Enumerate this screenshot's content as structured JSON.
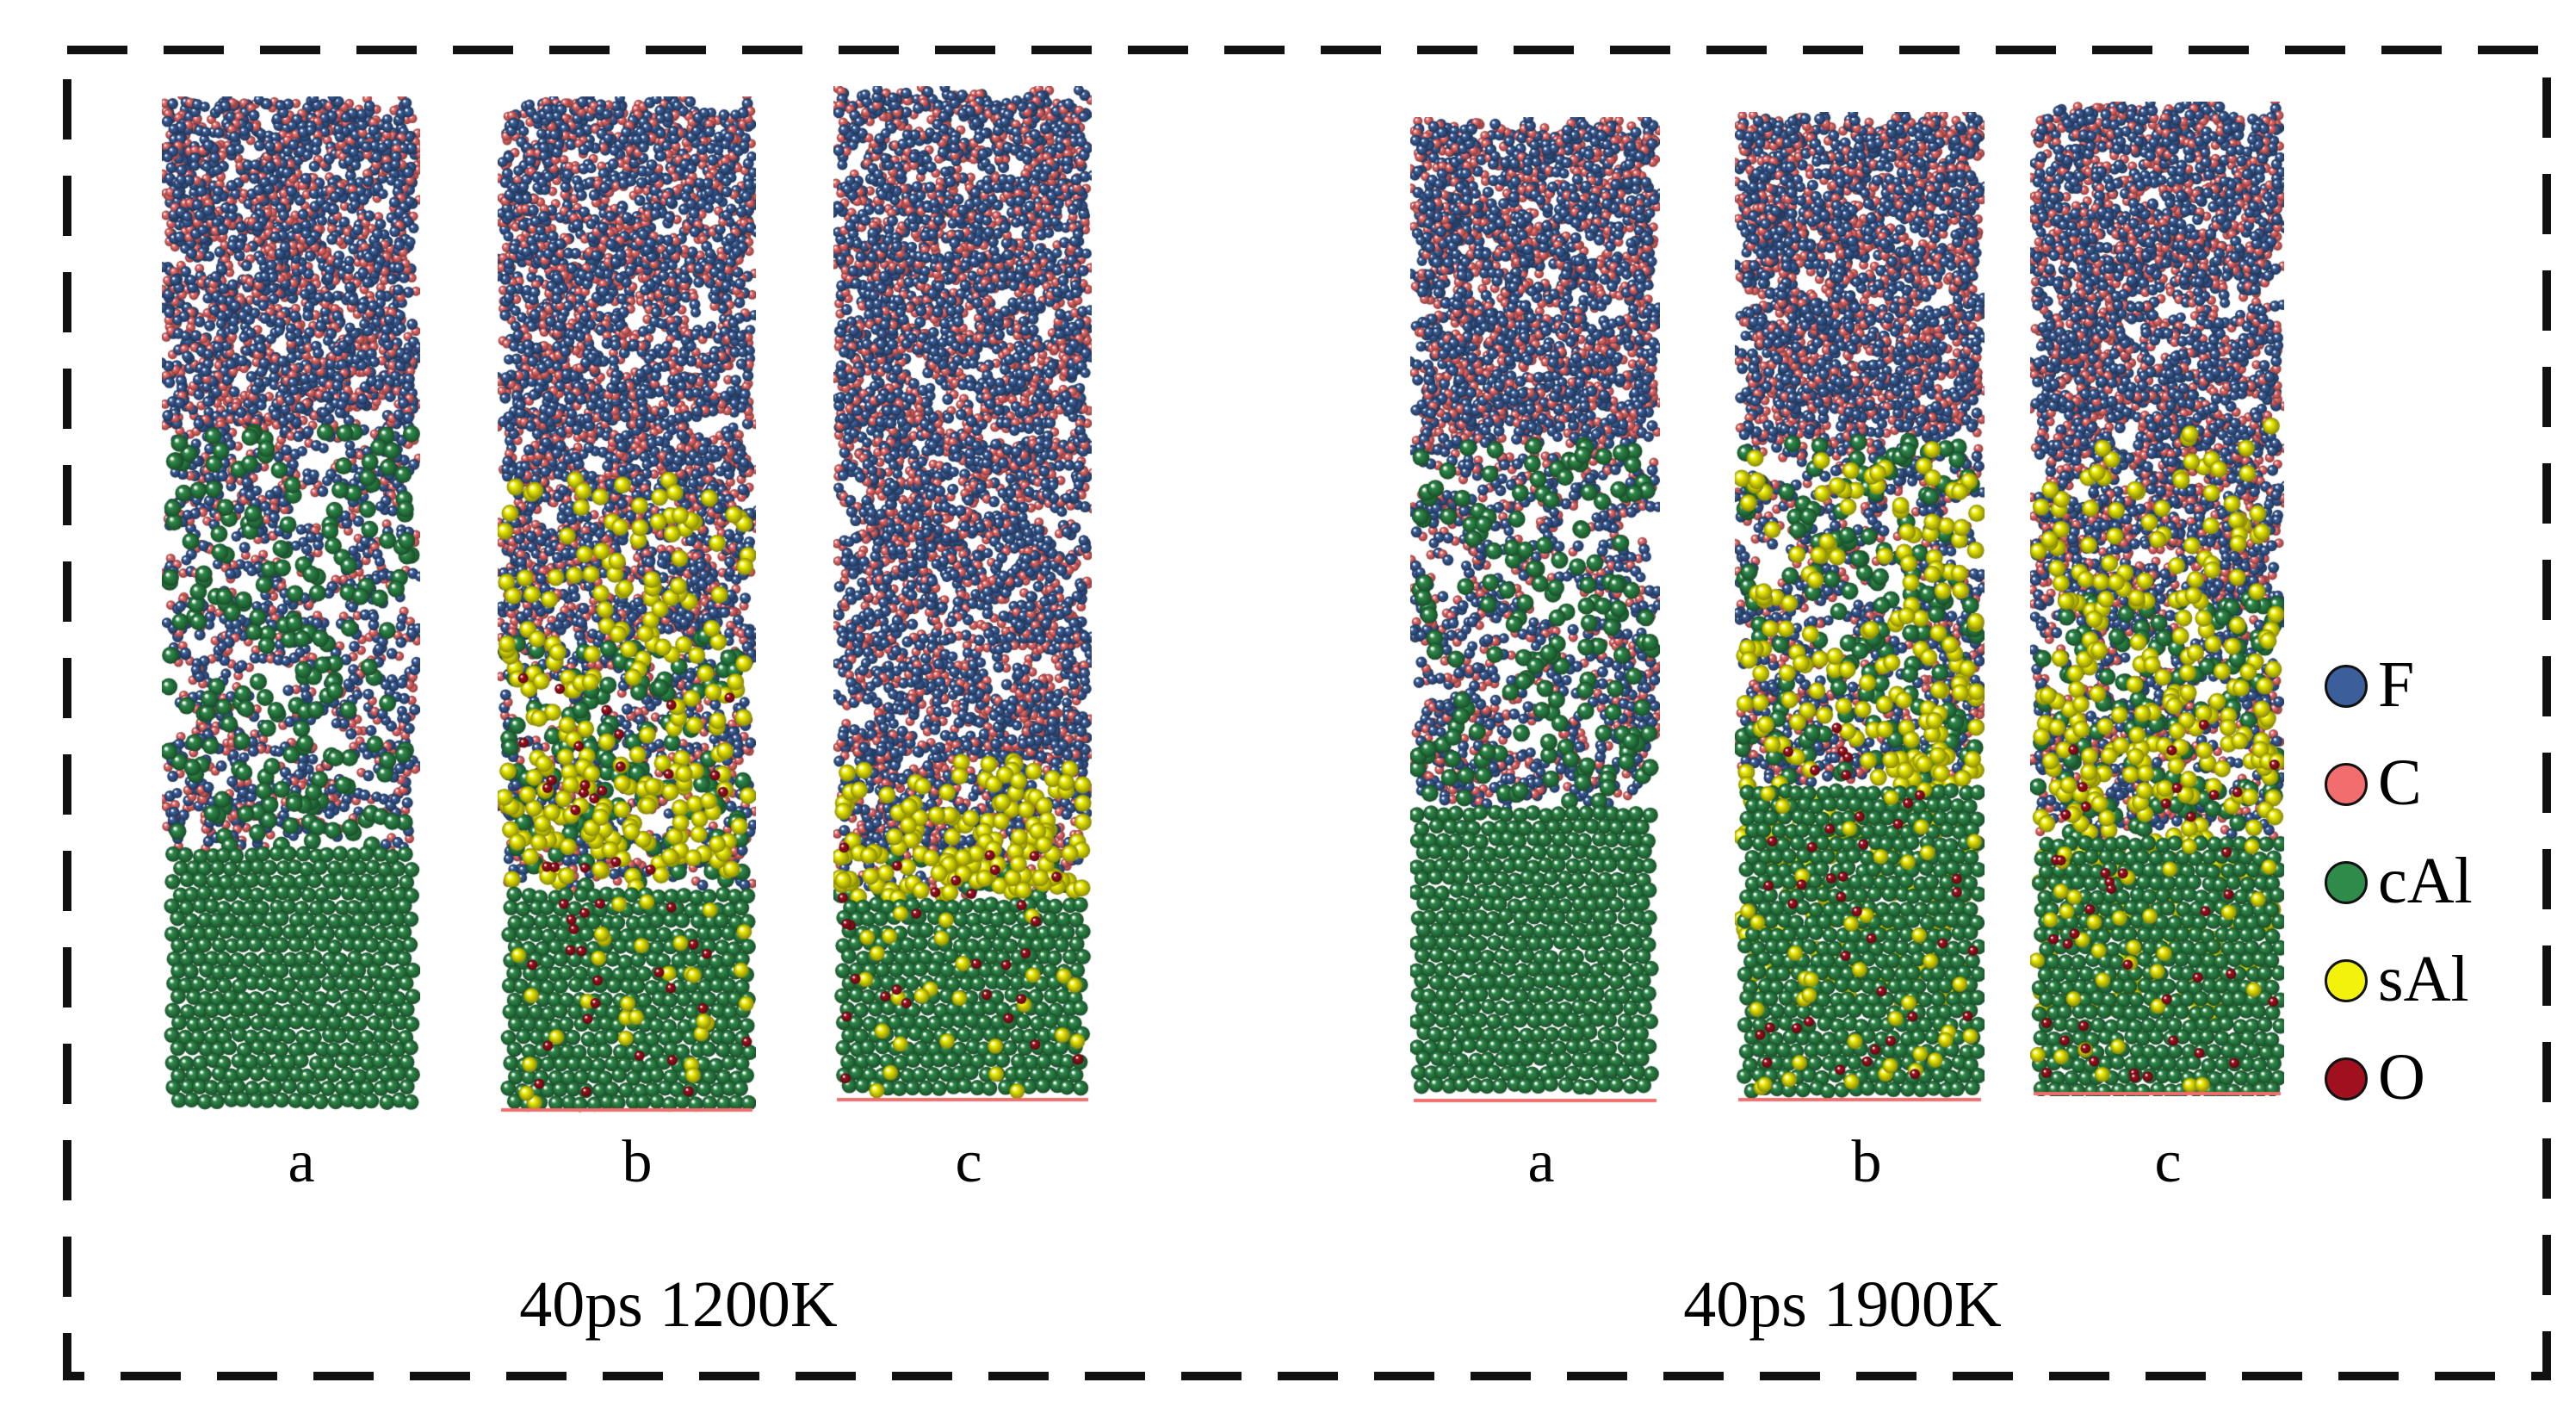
{
  "groups": [
    {
      "label": "40ps 1200K",
      "panels": [
        {
          "label": "a",
          "layers": {
            "bulk_cAl_from": 0.74,
            "mixed_cAl_from": 0.33,
            "sAl_band": null,
            "oxygen": false
          }
        },
        {
          "label": "b",
          "layers": {
            "bulk_cAl_from": 0.78,
            "mixed_cAl_from": 0.53,
            "sAl_band": [
              0.36,
              0.78
            ],
            "oxygen": true
          }
        },
        {
          "label": "c",
          "layers": {
            "bulk_cAl_from": 0.8,
            "mixed_cAl_from": 0.76,
            "sAl_band": [
              0.66,
              0.8
            ],
            "oxygen": true
          }
        }
      ]
    },
    {
      "label": "40ps 1900K",
      "panels": [
        {
          "label": "a",
          "layers": {
            "bulk_cAl_from": 0.7,
            "mixed_cAl_from": 0.33,
            "sAl_band": null,
            "oxygen": false
          }
        },
        {
          "label": "b",
          "layers": {
            "bulk_cAl_from": 0.68,
            "mixed_cAl_from": 0.33,
            "sAl_band": [
              0.33,
              0.9
            ],
            "oxygen": true
          }
        },
        {
          "label": "c",
          "layers": {
            "bulk_cAl_from": 0.74,
            "mixed_cAl_from": 0.5,
            "sAl_band": [
              0.3,
              0.92
            ],
            "oxygen": true
          }
        }
      ]
    }
  ],
  "legend": [
    {
      "label": "F",
      "color": "#3b5f9a"
    },
    {
      "label": "C",
      "color": "#f26d6d"
    },
    {
      "label": "cAl",
      "color": "#2e8b4a"
    },
    {
      "label": "sAl",
      "color": "#f2f20a"
    },
    {
      "label": "O",
      "color": "#a0101e"
    }
  ]
}
